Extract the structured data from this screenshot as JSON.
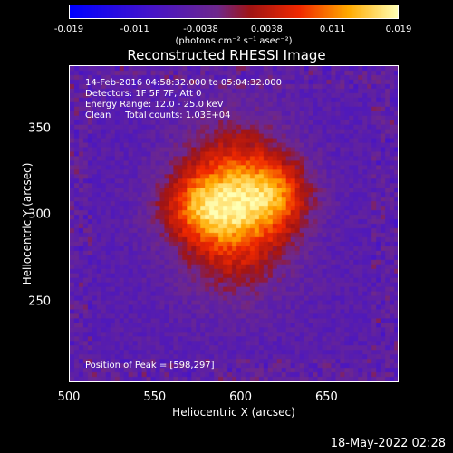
{
  "colorbar": {
    "ticks": [
      "-0.019",
      "-0.011",
      "-0.0038",
      "0.0038",
      "0.011",
      "0.019"
    ],
    "units": "(photons cm⁻² s⁻¹ asec⁻²)",
    "min": -0.019,
    "max": 0.019
  },
  "chart_data": {
    "type": "heatmap",
    "title": "Reconstructed RHESSI Image",
    "xlabel": "Heliocentric X (arcsec)",
    "ylabel": "Heliocentric Y (arcsec)",
    "xlim": [
      500,
      692
    ],
    "ylim": [
      203,
      387
    ],
    "xticks": [
      "500",
      "550",
      "600",
      "650"
    ],
    "yticks": [
      "350",
      "300",
      "250"
    ],
    "peak": {
      "x": 598,
      "y": 297
    },
    "sources": [
      {
        "x": 597,
        "y": 305,
        "sigma_x": 22,
        "sigma_y": 30,
        "amp": 0.019
      },
      {
        "x": 575,
        "y": 305,
        "sigma_x": 16,
        "sigma_y": 14,
        "amp": 0.01
      },
      {
        "x": 622,
        "y": 312,
        "sigma_x": 14,
        "sigma_y": 14,
        "amp": 0.01
      }
    ],
    "background": -0.006
  },
  "annotations": {
    "line1": "14-Feb-2016 04:58:32.000 to 05:04:32.000",
    "line2": "Detectors: 1F 5F 7F, Att 0",
    "line3": "Energy Range: 12.0 - 25.0 keV",
    "line4": "Clean     Total counts: 1.03E+04",
    "peak_label": "Position of Peak = [598,297]"
  },
  "footer": {
    "date": "18-May-2022 02:28"
  }
}
